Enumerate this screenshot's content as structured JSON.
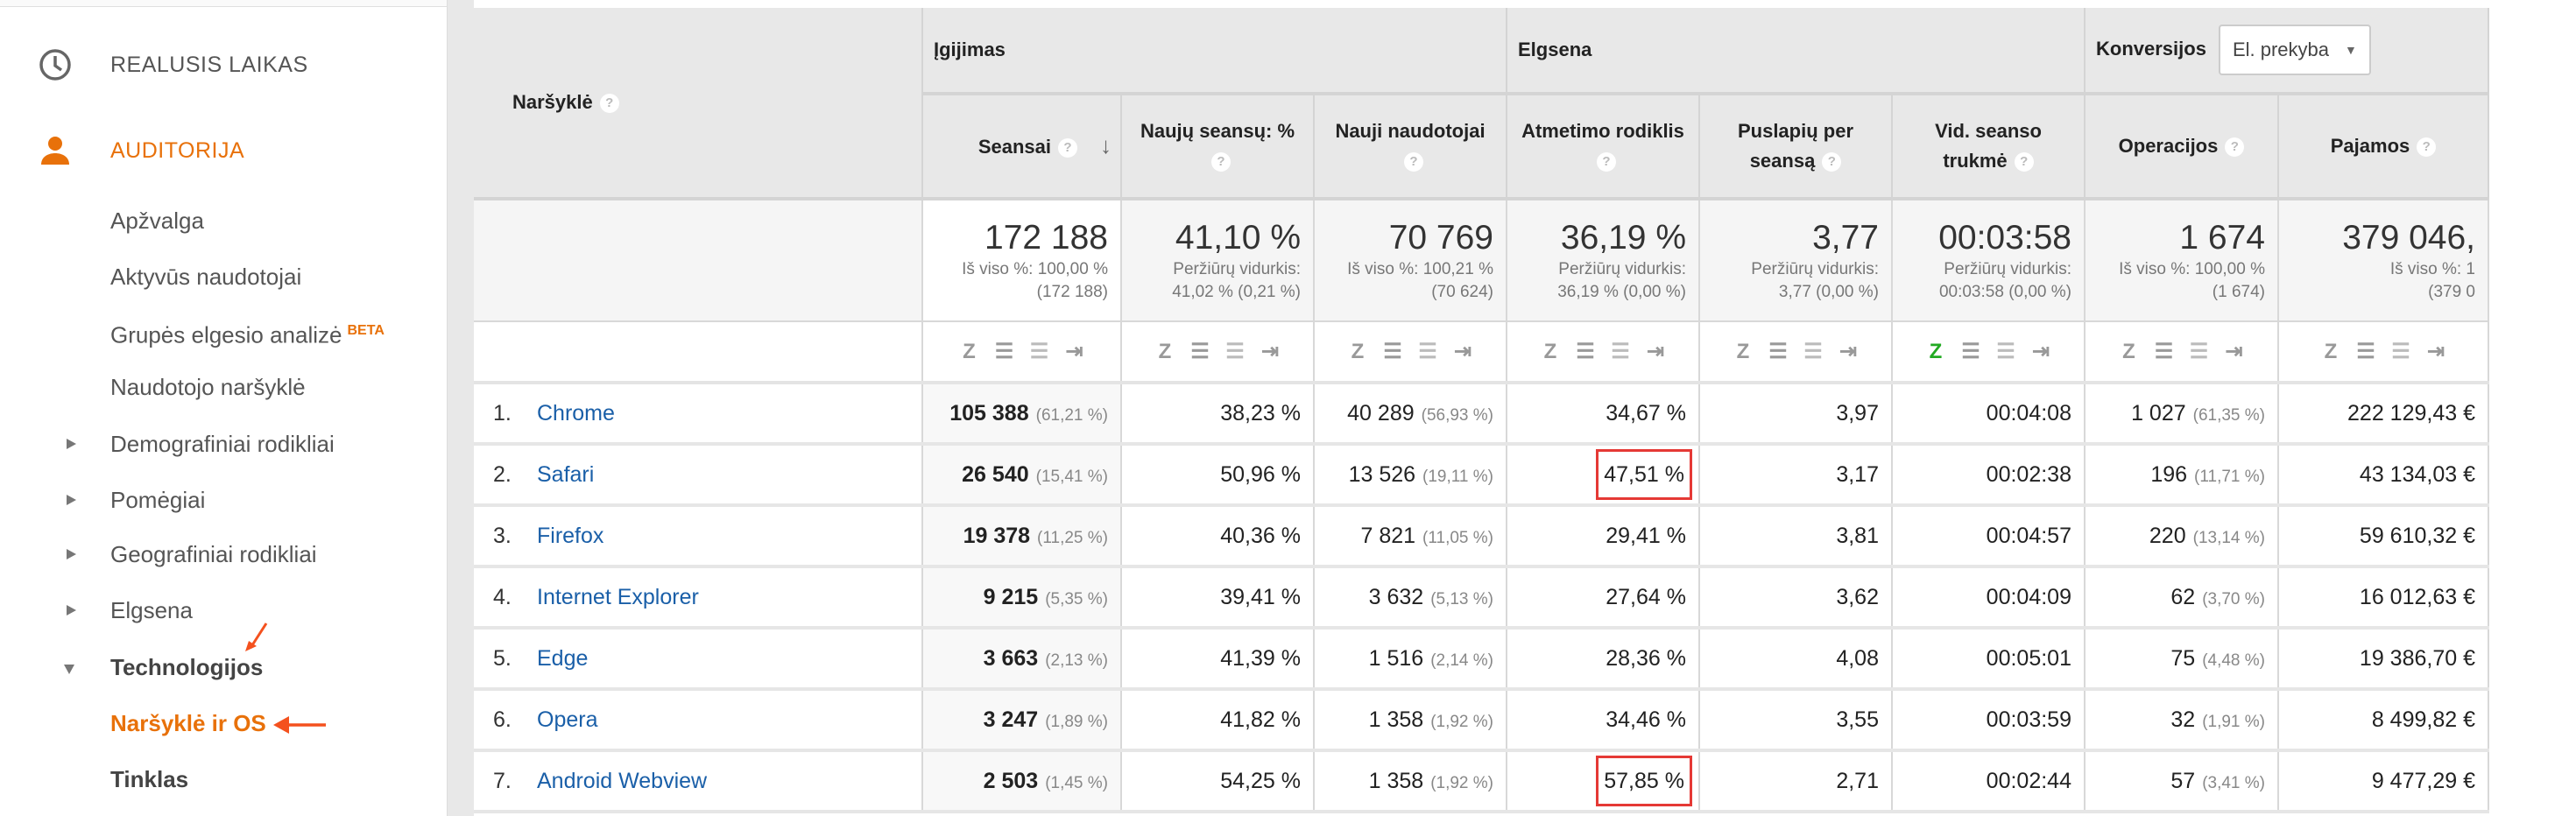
{
  "sidebar": {
    "realtime": "REALUSIS LAIKAS",
    "audience": "AUDITORIJA",
    "items": [
      "Apžvalga",
      "Aktyvūs naudotojai",
      "Grupės elgesio analizė",
      "Naudotojo naršyklė",
      "Demografiniai rodikliai",
      "Pomėgiai",
      "Geografiniai rodikliai",
      "Elgsena",
      "Technologijos",
      "Naršyklė ir OS",
      "Tinklas"
    ],
    "beta": "BETA"
  },
  "table": {
    "dimension": "Naršyklė",
    "groups": {
      "acq": "Įgijimas",
      "beh": "Elgsena",
      "conv": "Konversijos",
      "conv_select": "El. prekyba"
    },
    "columns": [
      "Seansai",
      "Naujų seansų: %",
      "Nauji naudotojai",
      "Atmetimo rodiklis",
      "Puslapių per seansą",
      "Vid. seanso trukmė",
      "Operacijos",
      "Pajamos"
    ],
    "totals": [
      {
        "big": "172 188",
        "l1": "Iš viso %: 100,00 %",
        "l2": "(172 188)"
      },
      {
        "big": "41,10 %",
        "l1": "Peržiūrų vidurkis:",
        "l2": "41,02 % (0,21 %)"
      },
      {
        "big": "70 769",
        "l1": "Iš viso %: 100,21 %",
        "l2": "(70 624)"
      },
      {
        "big": "36,19 %",
        "l1": "Peržiūrų vidurkis:",
        "l2": "36,19 % (0,00 %)"
      },
      {
        "big": "3,77",
        "l1": "Peržiūrų vidurkis:",
        "l2": "3,77 (0,00 %)"
      },
      {
        "big": "00:03:58",
        "l1": "Peržiūrų vidurkis:",
        "l2": "00:03:58 (0,00 %)"
      },
      {
        "big": "1 674",
        "l1": "Iš viso %: 100,00 %",
        "l2": "(1 674)"
      },
      {
        "big": "379 046,",
        "l1": "Iš viso %: 1",
        "l2": "(379 0"
      }
    ],
    "rows": [
      {
        "n": "1.",
        "name": "Chrome",
        "s": "105 388",
        "sp": "(61,21 %)",
        "ns": "38,23 %",
        "nu": "40 289",
        "nup": "(56,93 %)",
        "br": "34,67 %",
        "pps": "3,97",
        "dur": "00:04:08",
        "op": "1 027",
        "opp": "(61,35 %)",
        "rev": "222 129,43 €",
        "hl": false
      },
      {
        "n": "2.",
        "name": "Safari",
        "s": "26 540",
        "sp": "(15,41 %)",
        "ns": "50,96 %",
        "nu": "13 526",
        "nup": "(19,11 %)",
        "br": "47,51 %",
        "pps": "3,17",
        "dur": "00:02:38",
        "op": "196",
        "opp": "(11,71 %)",
        "rev": "43 134,03 €",
        "hl": true
      },
      {
        "n": "3.",
        "name": "Firefox",
        "s": "19 378",
        "sp": "(11,25 %)",
        "ns": "40,36 %",
        "nu": "7 821",
        "nup": "(11,05 %)",
        "br": "29,41 %",
        "pps": "3,81",
        "dur": "00:04:57",
        "op": "220",
        "opp": "(13,14 %)",
        "rev": "59 610,32 €",
        "hl": false
      },
      {
        "n": "4.",
        "name": "Internet Explorer",
        "s": "9 215",
        "sp": "(5,35 %)",
        "ns": "39,41 %",
        "nu": "3 632",
        "nup": "(5,13 %)",
        "br": "27,64 %",
        "pps": "3,62",
        "dur": "00:04:09",
        "op": "62",
        "opp": "(3,70 %)",
        "rev": "16 012,63 €",
        "hl": false
      },
      {
        "n": "5.",
        "name": "Edge",
        "s": "3 663",
        "sp": "(2,13 %)",
        "ns": "41,39 %",
        "nu": "1 516",
        "nup": "(2,14 %)",
        "br": "28,36 %",
        "pps": "4,08",
        "dur": "00:05:01",
        "op": "75",
        "opp": "(4,48 %)",
        "rev": "19 386,70 €",
        "hl": false
      },
      {
        "n": "6.",
        "name": "Opera",
        "s": "3 247",
        "sp": "(1,89 %)",
        "ns": "41,82 %",
        "nu": "1 358",
        "nup": "(1,92 %)",
        "br": "34,46 %",
        "pps": "3,55",
        "dur": "00:03:59",
        "op": "32",
        "opp": "(1,91 %)",
        "rev": "8 499,82 €",
        "hl": false
      },
      {
        "n": "7.",
        "name": "Android Webview",
        "s": "2 503",
        "sp": "(1,45 %)",
        "ns": "54,25 %",
        "nu": "1 358",
        "nup": "(1,92 %)",
        "br": "57,85 %",
        "pps": "2,71",
        "dur": "00:02:44",
        "op": "57",
        "opp": "(3,41 %)",
        "rev": "9 477,29 €",
        "hl": true
      }
    ]
  },
  "colors": {
    "accent": "#e8710a",
    "link": "#1a5fa8",
    "highlight": "#e53935"
  }
}
